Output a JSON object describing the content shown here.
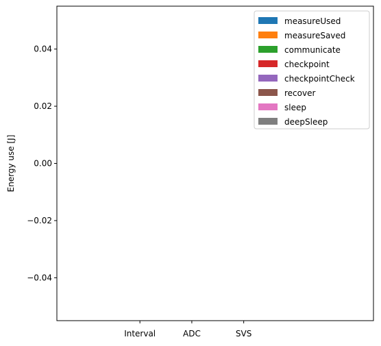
{
  "chart_data": {
    "type": "bar",
    "stacked": true,
    "categories": [
      "Interval",
      "ADC",
      "SVS"
    ],
    "series": [
      {
        "name": "measureUsed",
        "color": "#1f77b4",
        "values": [
          0,
          0,
          0
        ]
      },
      {
        "name": "measureSaved",
        "color": "#ff7f0e",
        "values": [
          0,
          0,
          0
        ]
      },
      {
        "name": "communicate",
        "color": "#2ca02c",
        "values": [
          0,
          0,
          0
        ]
      },
      {
        "name": "checkpoint",
        "color": "#d62728",
        "values": [
          0,
          0,
          0
        ]
      },
      {
        "name": "checkpointCheck",
        "color": "#9467bd",
        "values": [
          0,
          0,
          0
        ]
      },
      {
        "name": "recover",
        "color": "#8c564b",
        "values": [
          0,
          0,
          0
        ]
      },
      {
        "name": "sleep",
        "color": "#e377c2",
        "values": [
          0,
          0,
          0
        ]
      },
      {
        "name": "deepSleep",
        "color": "#7f7f7f",
        "values": [
          0,
          0,
          0
        ]
      }
    ],
    "title": "",
    "xlabel": "",
    "ylabel": "Energy use [J]",
    "ylim": [
      -0.055,
      0.055
    ],
    "yticks": [
      -0.04,
      -0.02,
      0.0,
      0.02,
      0.04
    ],
    "ytick_labels": [
      "−0.04",
      "−0.02",
      "0.00",
      "0.02",
      "0.04"
    ],
    "grid": false,
    "legend_position": "top-right"
  }
}
